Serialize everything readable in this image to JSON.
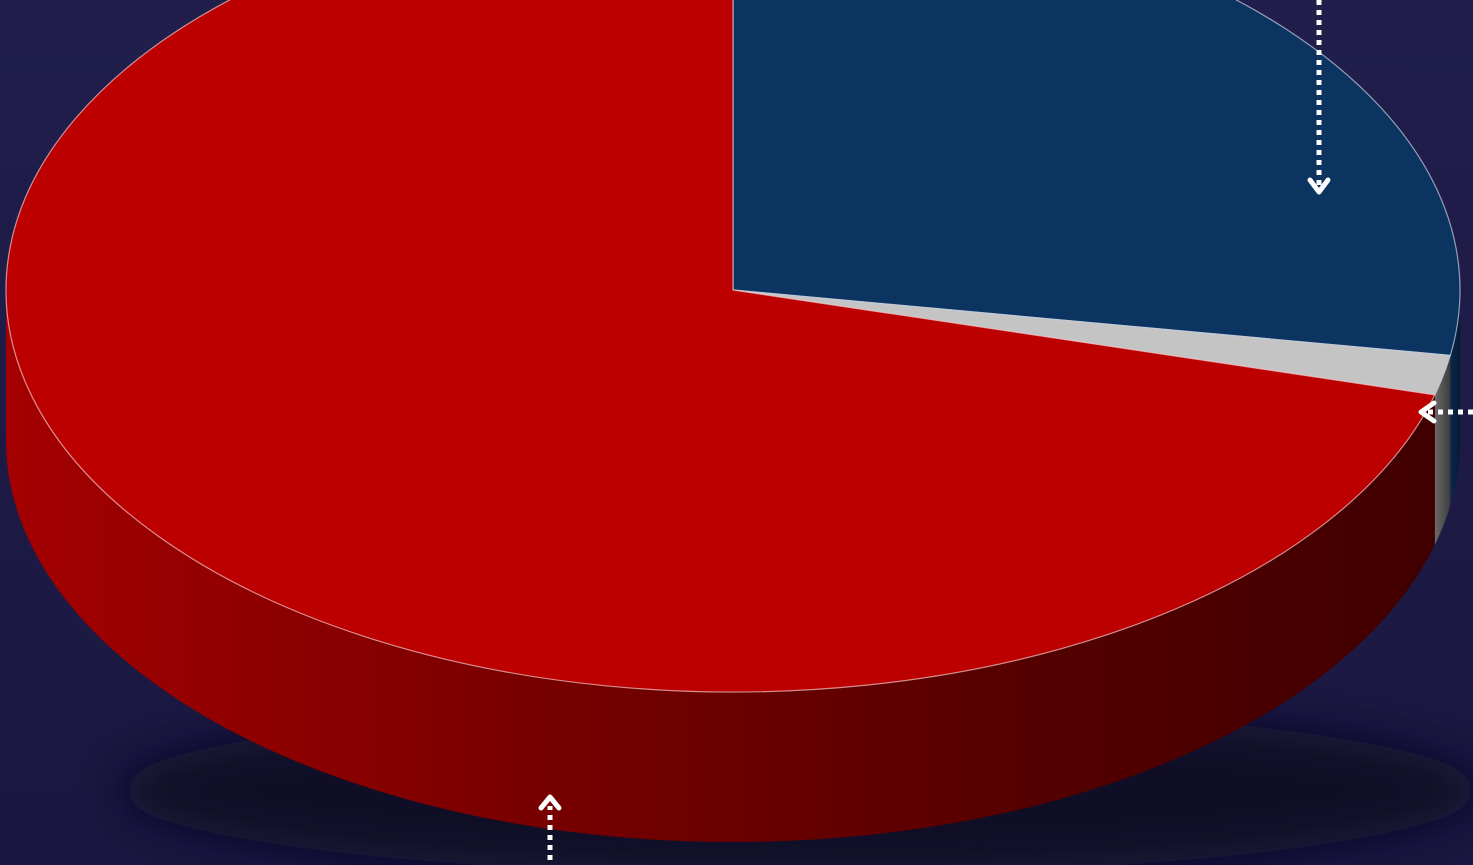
{
  "chart_data": {
    "type": "pie",
    "style": "3d",
    "slices": [
      {
        "value": 27.6,
        "color": "#0b3460"
      },
      {
        "value": 1.6,
        "color": "#c4c4c4"
      },
      {
        "value": 70.8,
        "color": "#bc0000"
      }
    ],
    "background": "#1f1c48",
    "annotations": "dotted-arrow-callouts"
  }
}
